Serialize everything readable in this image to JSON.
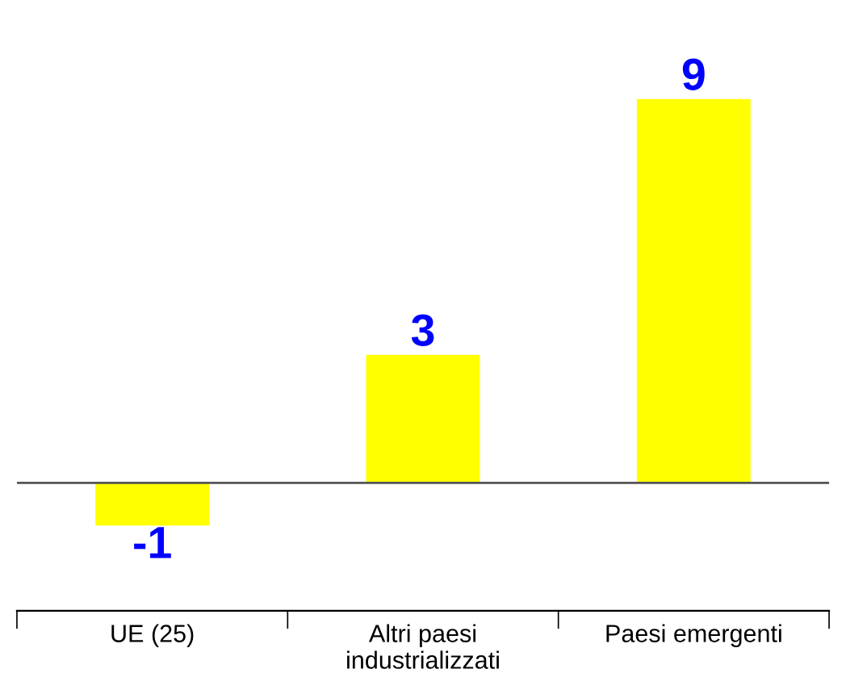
{
  "chart_data": {
    "type": "bar",
    "categories": [
      "UE (25)",
      "Altri paesi\nindustrializzati",
      "Paesi emergenti"
    ],
    "values": [
      -1,
      3,
      9
    ],
    "color": "#ffff00",
    "data_labels": true,
    "tick_labels": "x",
    "grid": false,
    "legend": false
  }
}
